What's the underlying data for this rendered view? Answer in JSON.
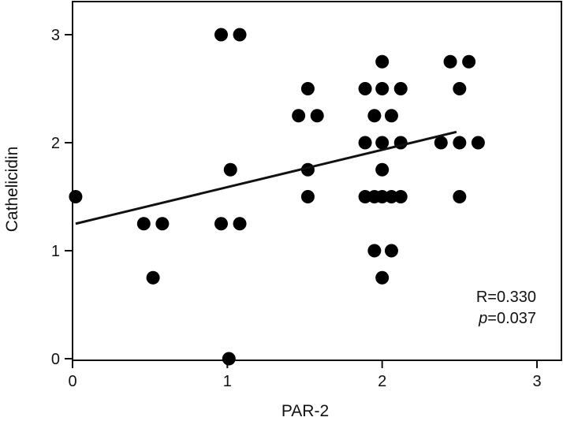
{
  "chart_data": {
    "type": "scatter",
    "xlabel": "PAR-2",
    "ylabel": "Cathelicidin",
    "xlim": [
      0,
      3
    ],
    "ylim": [
      0,
      3
    ],
    "x_ticks": [
      "0",
      "1",
      "2",
      "3"
    ],
    "y_ticks": [
      "0",
      "1",
      "2",
      "3"
    ],
    "points": [
      {
        "x": 0.02,
        "y": 1.5
      },
      {
        "x": 0.46,
        "y": 1.25
      },
      {
        "x": 0.58,
        "y": 1.25
      },
      {
        "x": 0.52,
        "y": 0.75
      },
      {
        "x": 0.96,
        "y": 3.0
      },
      {
        "x": 1.08,
        "y": 3.0
      },
      {
        "x": 1.02,
        "y": 1.75
      },
      {
        "x": 0.96,
        "y": 1.25
      },
      {
        "x": 1.08,
        "y": 1.25
      },
      {
        "x": 1.01,
        "y": 0.0
      },
      {
        "x": 1.46,
        "y": 2.25
      },
      {
        "x": 1.58,
        "y": 2.25
      },
      {
        "x": 1.52,
        "y": 2.5
      },
      {
        "x": 1.52,
        "y": 1.75
      },
      {
        "x": 1.52,
        "y": 1.5
      },
      {
        "x": 2.0,
        "y": 2.75
      },
      {
        "x": 1.89,
        "y": 2.5
      },
      {
        "x": 2.0,
        "y": 2.5
      },
      {
        "x": 2.12,
        "y": 2.5
      },
      {
        "x": 1.95,
        "y": 2.25
      },
      {
        "x": 2.06,
        "y": 2.25
      },
      {
        "x": 1.89,
        "y": 2.0
      },
      {
        "x": 2.0,
        "y": 2.0
      },
      {
        "x": 2.12,
        "y": 2.0
      },
      {
        "x": 2.0,
        "y": 1.75
      },
      {
        "x": 1.89,
        "y": 1.5
      },
      {
        "x": 1.95,
        "y": 1.5
      },
      {
        "x": 2.0,
        "y": 1.5
      },
      {
        "x": 2.06,
        "y": 1.5
      },
      {
        "x": 2.12,
        "y": 1.5
      },
      {
        "x": 1.95,
        "y": 1.0
      },
      {
        "x": 2.06,
        "y": 1.0
      },
      {
        "x": 2.0,
        "y": 0.75
      },
      {
        "x": 2.44,
        "y": 2.75
      },
      {
        "x": 2.56,
        "y": 2.75
      },
      {
        "x": 2.5,
        "y": 2.5
      },
      {
        "x": 2.38,
        "y": 2.0
      },
      {
        "x": 2.5,
        "y": 2.0
      },
      {
        "x": 2.62,
        "y": 2.0
      },
      {
        "x": 2.5,
        "y": 1.5
      }
    ],
    "trend_line": {
      "x": [
        0.02,
        2.48
      ],
      "y": [
        1.25,
        2.1
      ]
    },
    "annotations": {
      "r_text": "R=0.330",
      "p_italic": "p",
      "p_value": "=0.037"
    },
    "grid": false,
    "legend": "none"
  }
}
